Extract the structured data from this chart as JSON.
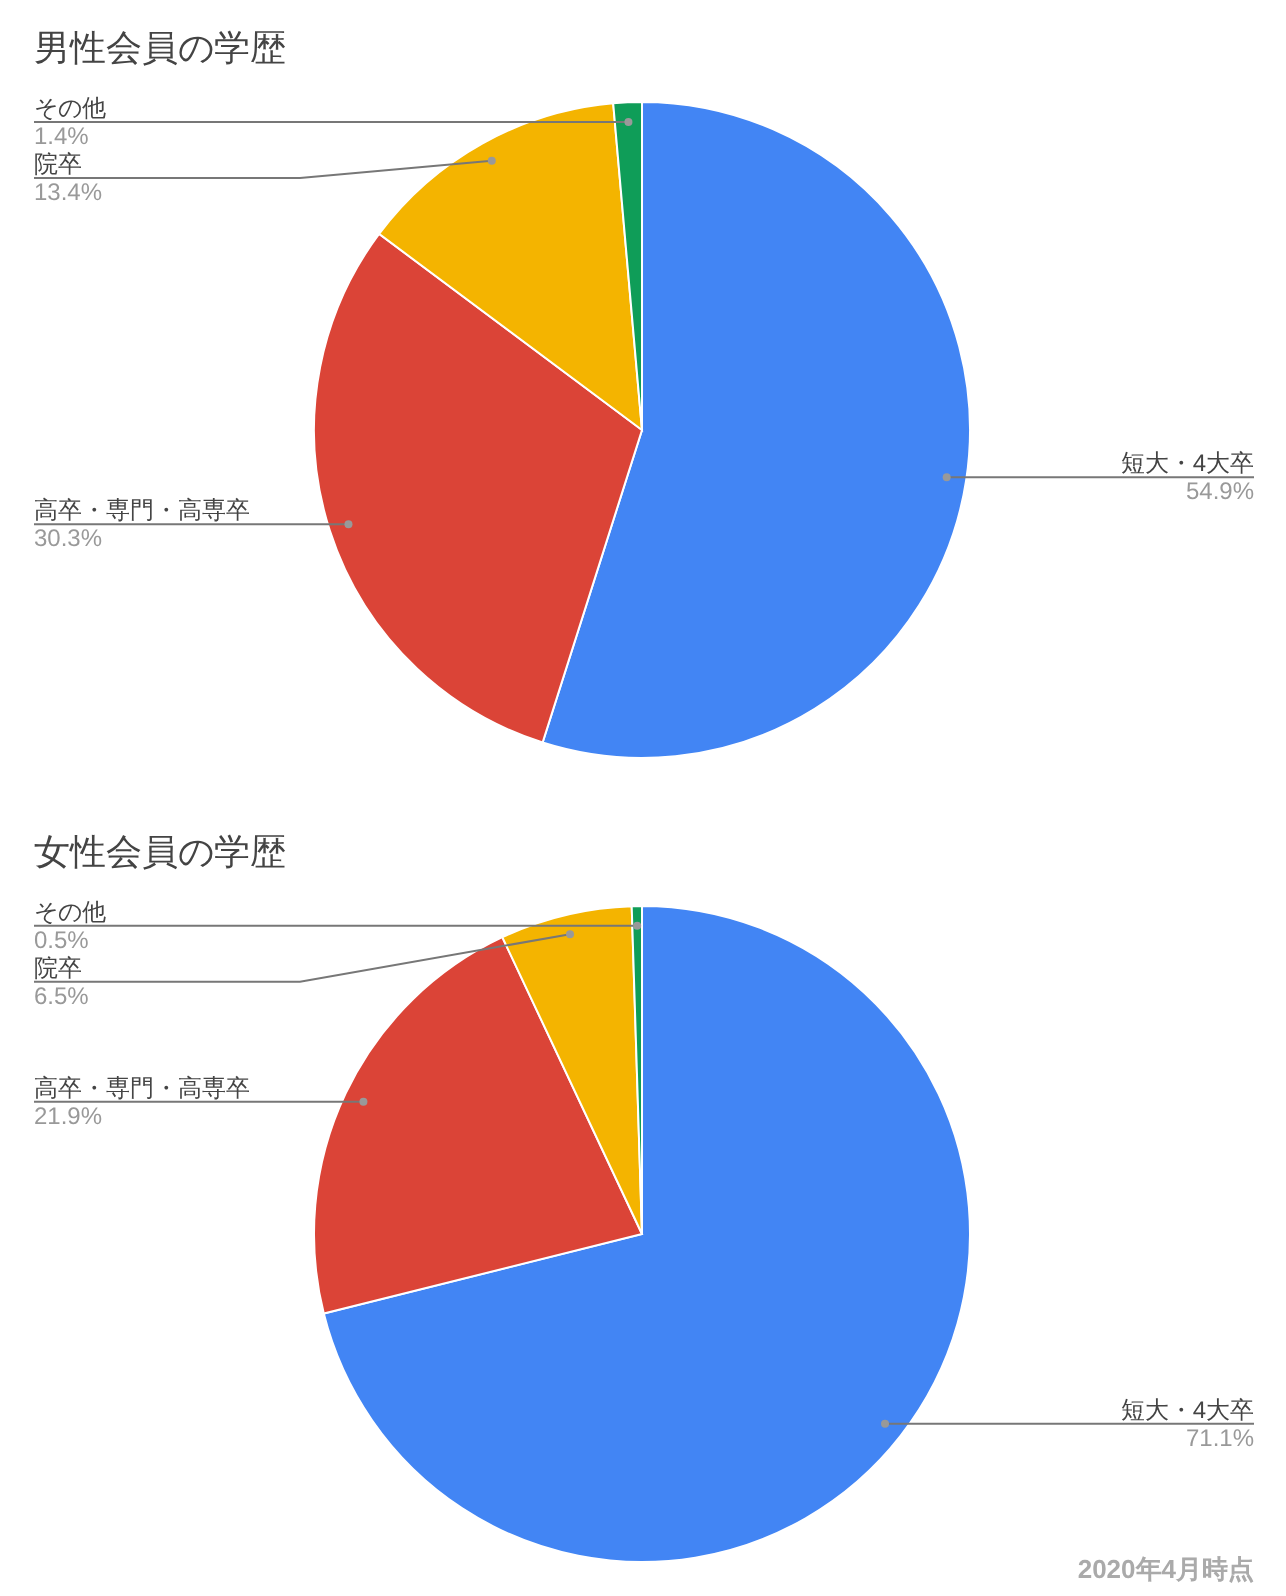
{
  "chart_data": [
    {
      "type": "pie",
      "title": "男性会員の学歴",
      "categories": [
        "短大・4大卒",
        "高卒・専門・高専卒",
        "院卒",
        "その他"
      ],
      "values": [
        54.9,
        30.3,
        13.4,
        1.4
      ],
      "colors": [
        "#4285f4",
        "#db4437",
        "#f4b400",
        "#0f9d58"
      ],
      "value_labels": [
        "54.9%",
        "30.3%",
        "13.4%",
        "1.4%"
      ]
    },
    {
      "type": "pie",
      "title": "女性会員の学歴",
      "categories": [
        "短大・4大卒",
        "高卒・専門・高専卒",
        "院卒",
        "その他"
      ],
      "values": [
        71.1,
        21.9,
        6.5,
        0.5
      ],
      "colors": [
        "#4285f4",
        "#db4437",
        "#f4b400",
        "#0f9d58"
      ],
      "value_labels": [
        "71.1%",
        "21.9%",
        "6.5%",
        "0.5%"
      ],
      "annotations": [
        "2020年4月時点"
      ]
    }
  ]
}
